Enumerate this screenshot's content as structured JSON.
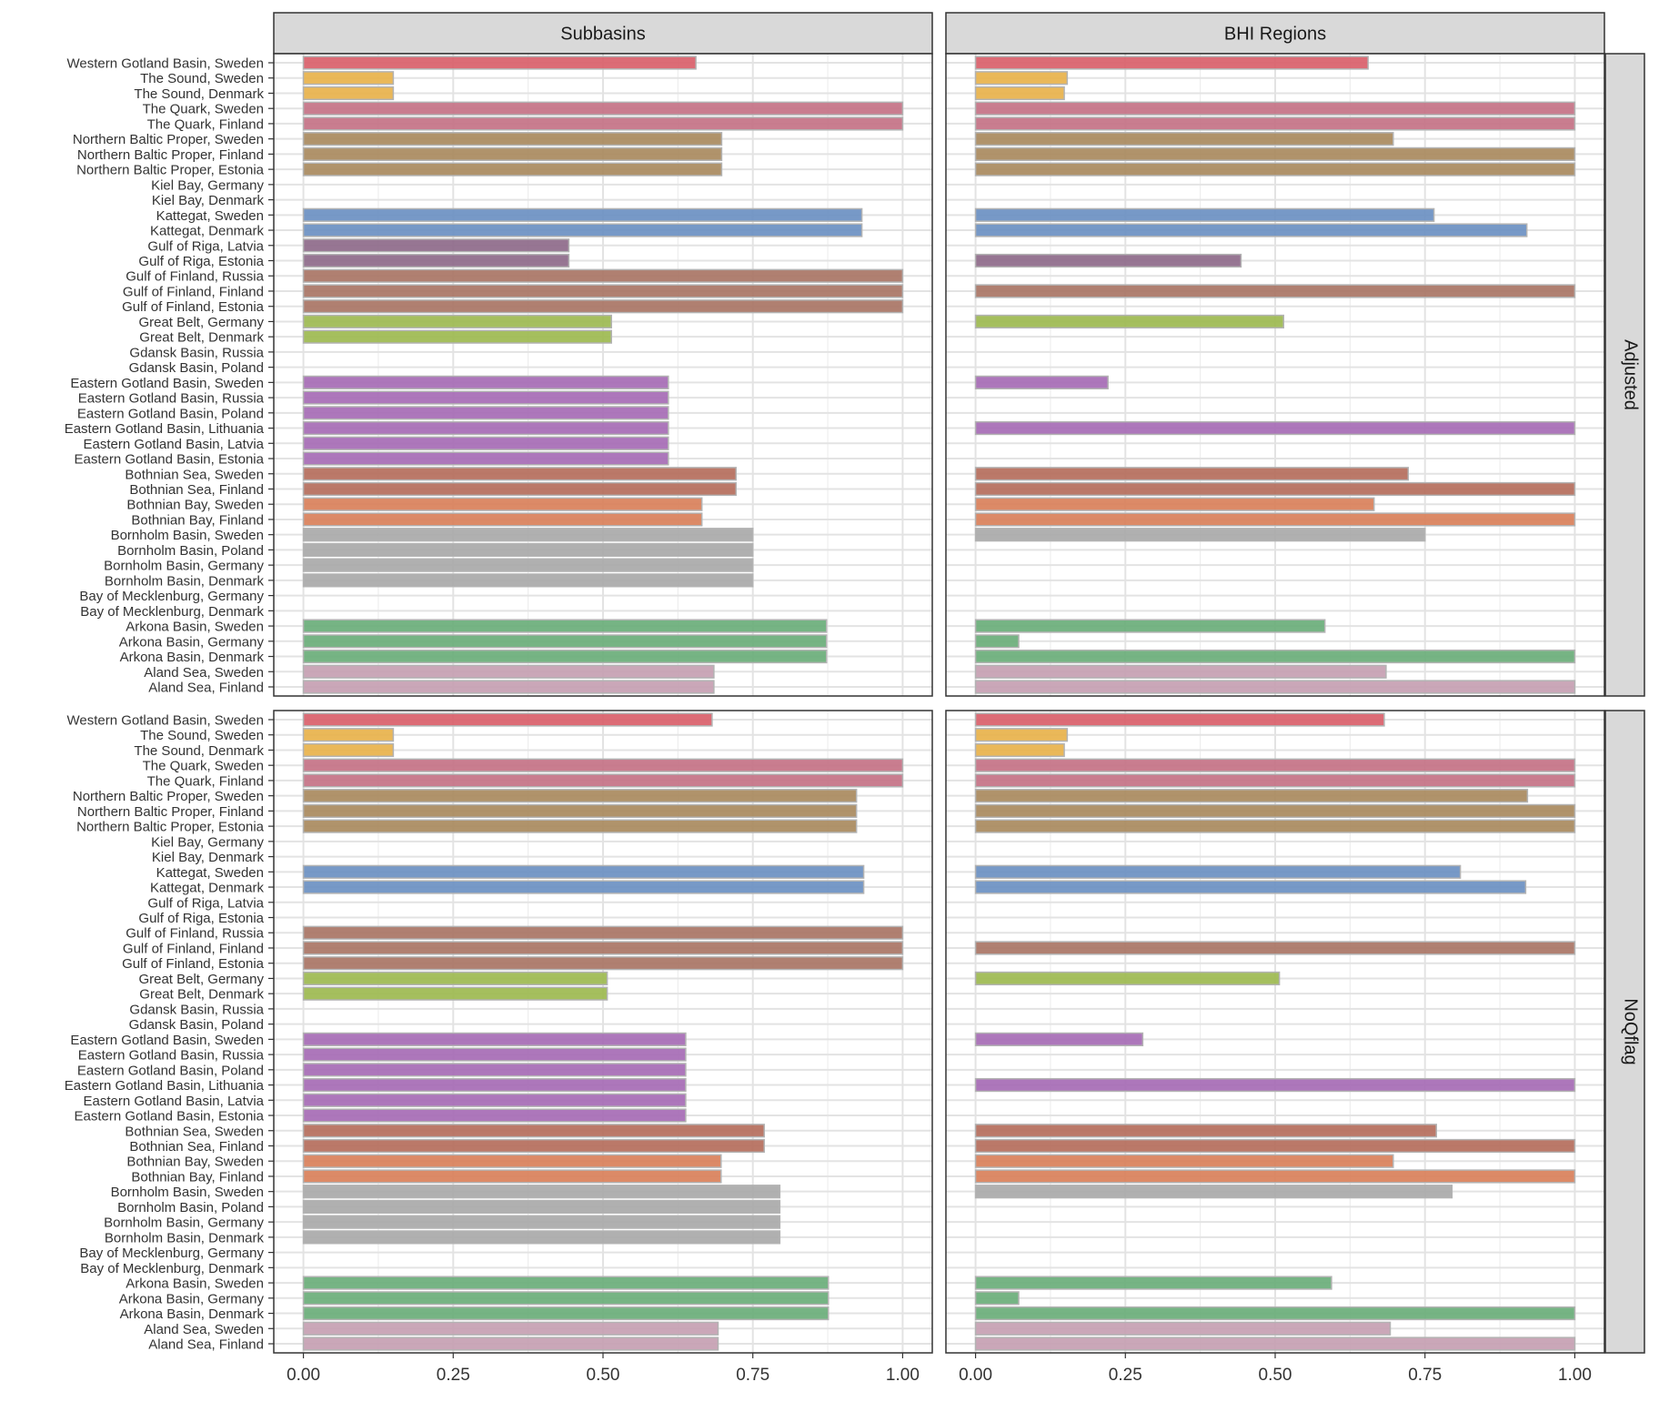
{
  "chart_data": {
    "type": "bar",
    "orientation": "horizontal",
    "facet_columns": [
      "Subbasins",
      "BHI Regions"
    ],
    "facet_rows": [
      "Adjusted",
      "NoQflag"
    ],
    "xlim": [
      0,
      1
    ],
    "x_ticks": [
      "0.00",
      "0.25",
      "0.50",
      "0.75",
      "1.00"
    ],
    "x_tick_values": [
      0,
      0.25,
      0.5,
      0.75,
      1.0
    ],
    "grid": true,
    "legend": "none",
    "categories": [
      "Western Gotland Basin, Sweden",
      "The Sound, Sweden",
      "The Sound, Denmark",
      "The Quark, Sweden",
      "The Quark, Finland",
      "Northern Baltic Proper, Sweden",
      "Northern Baltic Proper, Finland",
      "Northern Baltic Proper, Estonia",
      "Kiel Bay, Germany",
      "Kiel Bay, Denmark",
      "Kattegat, Sweden",
      "Kattegat, Denmark",
      "Gulf of Riga, Latvia",
      "Gulf of Riga, Estonia",
      "Gulf of Finland, Russia",
      "Gulf of Finland, Finland",
      "Gulf of Finland, Estonia",
      "Great Belt, Germany",
      "Great Belt, Denmark",
      "Gdansk Basin, Russia",
      "Gdansk Basin, Poland",
      "Eastern Gotland Basin, Sweden",
      "Eastern Gotland Basin, Russia",
      "Eastern Gotland Basin, Poland",
      "Eastern Gotland Basin, Lithuania",
      "Eastern Gotland Basin, Latvia",
      "Eastern Gotland Basin, Estonia",
      "Bothnian Sea, Sweden",
      "Bothnian Sea, Finland",
      "Bothnian Bay, Sweden",
      "Bothnian Bay, Finland",
      "Bornholm Basin, Sweden",
      "Bornholm Basin, Poland",
      "Bornholm Basin, Germany",
      "Bornholm Basin, Denmark",
      "Bay of Mecklenburg, Germany",
      "Bay of Mecklenburg, Denmark",
      "Arkona Basin, Sweden",
      "Arkona Basin, Germany",
      "Arkona Basin, Denmark",
      "Aland Sea, Sweden",
      "Aland Sea, Finland"
    ],
    "basin_colors": [
      "#d95f6a",
      "#e8b24b",
      "#e8b24b",
      "#c47286",
      "#c47286",
      "#a98a5e",
      "#a98a5e",
      "#a98a5e",
      "#cccccc",
      "#cccccc",
      "#6b90c2",
      "#6b90c2",
      "#8e6a8a",
      "#8e6a8a",
      "#a97565",
      "#a97565",
      "#a97565",
      "#9dba50",
      "#9dba50",
      "#cccccc",
      "#cccccc",
      "#a66bb5",
      "#a66bb5",
      "#a66bb5",
      "#a66bb5",
      "#a66bb5",
      "#a66bb5",
      "#b56e5c",
      "#b56e5c",
      "#d9805a",
      "#d9805a",
      "#a9a9a9",
      "#a9a9a9",
      "#a9a9a9",
      "#a9a9a9",
      "#cccccc",
      "#cccccc",
      "#6aae7a",
      "#6aae7a",
      "#6aae7a",
      "#c59fb2",
      "#c59fb2"
    ],
    "panels": [
      {
        "row": "Adjusted",
        "column": "Subbasins",
        "values": [
          0.655,
          0.15,
          0.15,
          1.0,
          1.0,
          0.698,
          0.698,
          0.698,
          null,
          null,
          0.932,
          0.932,
          0.443,
          0.443,
          1.0,
          1.0,
          1.0,
          0.514,
          0.514,
          null,
          null,
          0.609,
          0.609,
          0.609,
          0.609,
          0.609,
          0.609,
          0.722,
          0.722,
          0.665,
          0.665,
          0.75,
          0.75,
          0.75,
          0.75,
          null,
          null,
          0.873,
          0.873,
          0.873,
          0.685,
          0.685
        ]
      },
      {
        "row": "Adjusted",
        "column": "BHI Regions",
        "values": [
          0.655,
          0.153,
          0.148,
          1.0,
          1.0,
          0.697,
          1.0,
          1.0,
          null,
          null,
          0.765,
          0.92,
          null,
          0.443,
          null,
          1.0,
          null,
          0.514,
          null,
          null,
          null,
          0.221,
          null,
          null,
          1.0,
          null,
          null,
          0.722,
          1.0,
          0.665,
          1.0,
          0.75,
          null,
          null,
          null,
          null,
          null,
          0.583,
          0.072,
          1.0,
          0.685,
          1.0
        ]
      },
      {
        "row": "NoQflag",
        "column": "Subbasins",
        "values": [
          0.682,
          0.15,
          0.15,
          1.0,
          1.0,
          0.923,
          0.923,
          0.923,
          null,
          null,
          0.935,
          0.935,
          null,
          null,
          1.0,
          1.0,
          1.0,
          0.507,
          0.507,
          null,
          null,
          0.638,
          0.638,
          0.638,
          0.638,
          0.638,
          0.638,
          0.769,
          0.769,
          0.697,
          0.697,
          0.795,
          0.795,
          0.795,
          0.795,
          null,
          null,
          0.876,
          0.876,
          0.876,
          0.692,
          0.692
        ]
      },
      {
        "row": "NoQflag",
        "column": "BHI Regions",
        "values": [
          0.682,
          0.153,
          0.148,
          1.0,
          1.0,
          0.921,
          1.0,
          1.0,
          null,
          null,
          0.809,
          0.918,
          null,
          null,
          null,
          1.0,
          null,
          0.507,
          null,
          null,
          null,
          0.279,
          null,
          null,
          1.0,
          null,
          null,
          0.769,
          1.0,
          0.697,
          1.0,
          0.795,
          null,
          null,
          null,
          null,
          null,
          0.594,
          0.072,
          1.0,
          0.692,
          1.0
        ]
      }
    ]
  }
}
